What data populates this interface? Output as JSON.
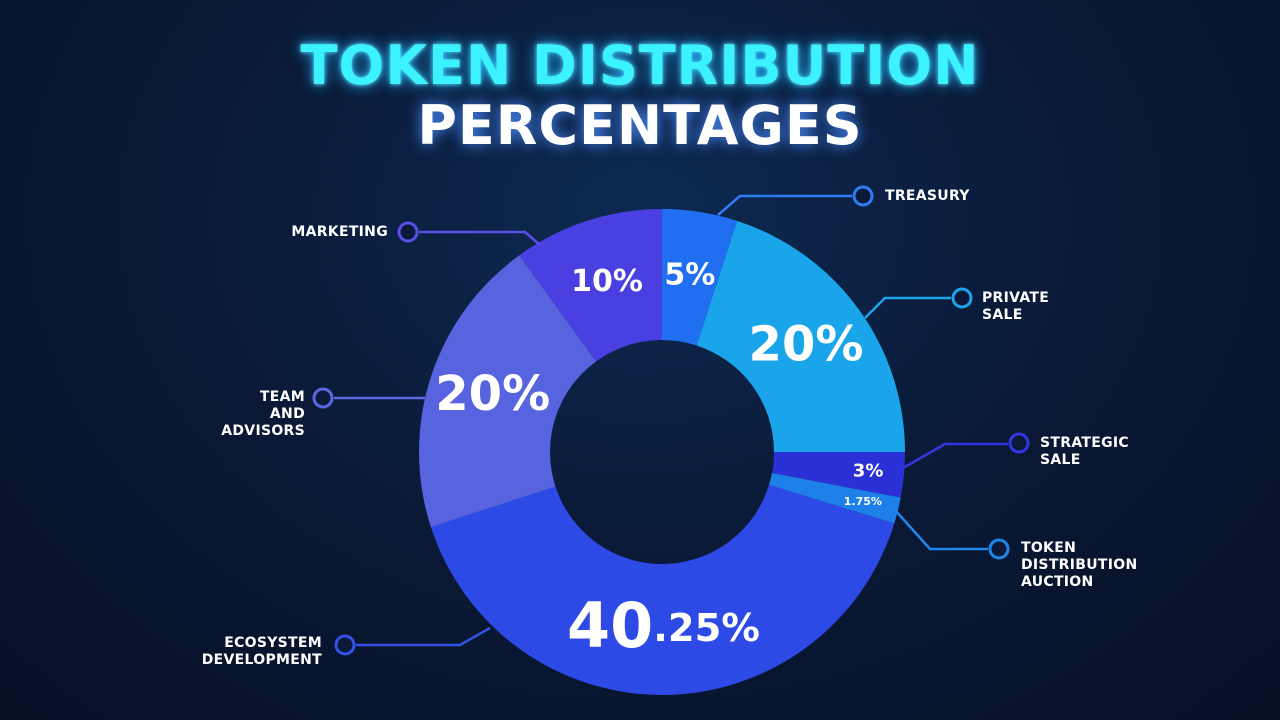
{
  "chart_data": {
    "type": "donut",
    "title": "TOKEN DISTRIBUTION",
    "subtitle": "PERCENTAGES",
    "categories": [
      "TREASURY",
      "PRIVATE\nSALE",
      "STRATEGIC\nSALE",
      "TOKEN\nDISTRIBUTION\nAUCTION",
      "ECOSYSTEM\nDEVELOPMENT",
      "TEAM\nAND\nADVISORS",
      "MARKETING"
    ],
    "values": [
      5,
      20,
      3,
      1.75,
      40.25,
      20,
      10
    ],
    "value_labels": [
      "5%",
      "20%",
      "3%",
      "1.75%",
      "40.25%",
      "20%",
      "10%"
    ],
    "colors": [
      "#1f6ff0",
      "#1aa5ea",
      "#2b2fd6",
      "#1d80e8",
      "#2d4ae6",
      "#5864df",
      "#4a3fe0"
    ]
  }
}
